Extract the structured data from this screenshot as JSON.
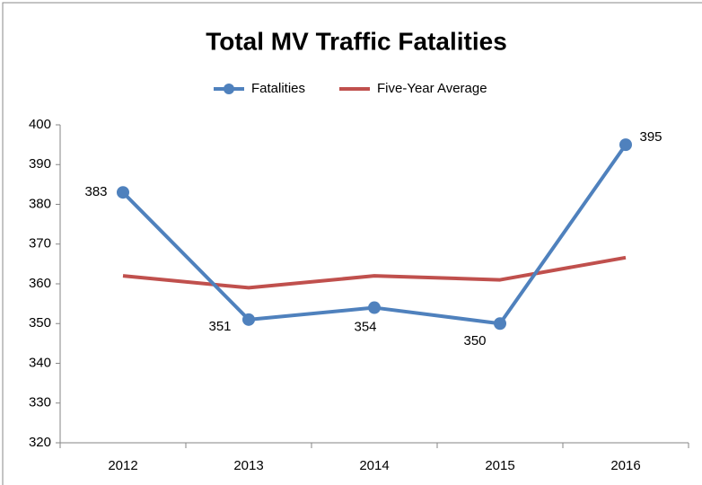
{
  "chart_data": {
    "type": "line",
    "title": "Total MV Traffic Fatalities",
    "categories": [
      "2012",
      "2013",
      "2014",
      "2015",
      "2016"
    ],
    "series": [
      {
        "name": "Fatalities",
        "color": "#4f81bd",
        "values": [
          383,
          351,
          354,
          350,
          395
        ],
        "markers": true,
        "data_labels": true
      },
      {
        "name": "Five-Year Average",
        "color": "#c0504d",
        "values": [
          362,
          359,
          362,
          361,
          366.6
        ],
        "markers": false,
        "data_labels": false
      }
    ],
    "ylim": [
      320,
      400
    ],
    "yticks": [
      320,
      330,
      340,
      350,
      360,
      370,
      380,
      390,
      400
    ],
    "grid": false,
    "legend": "top"
  }
}
